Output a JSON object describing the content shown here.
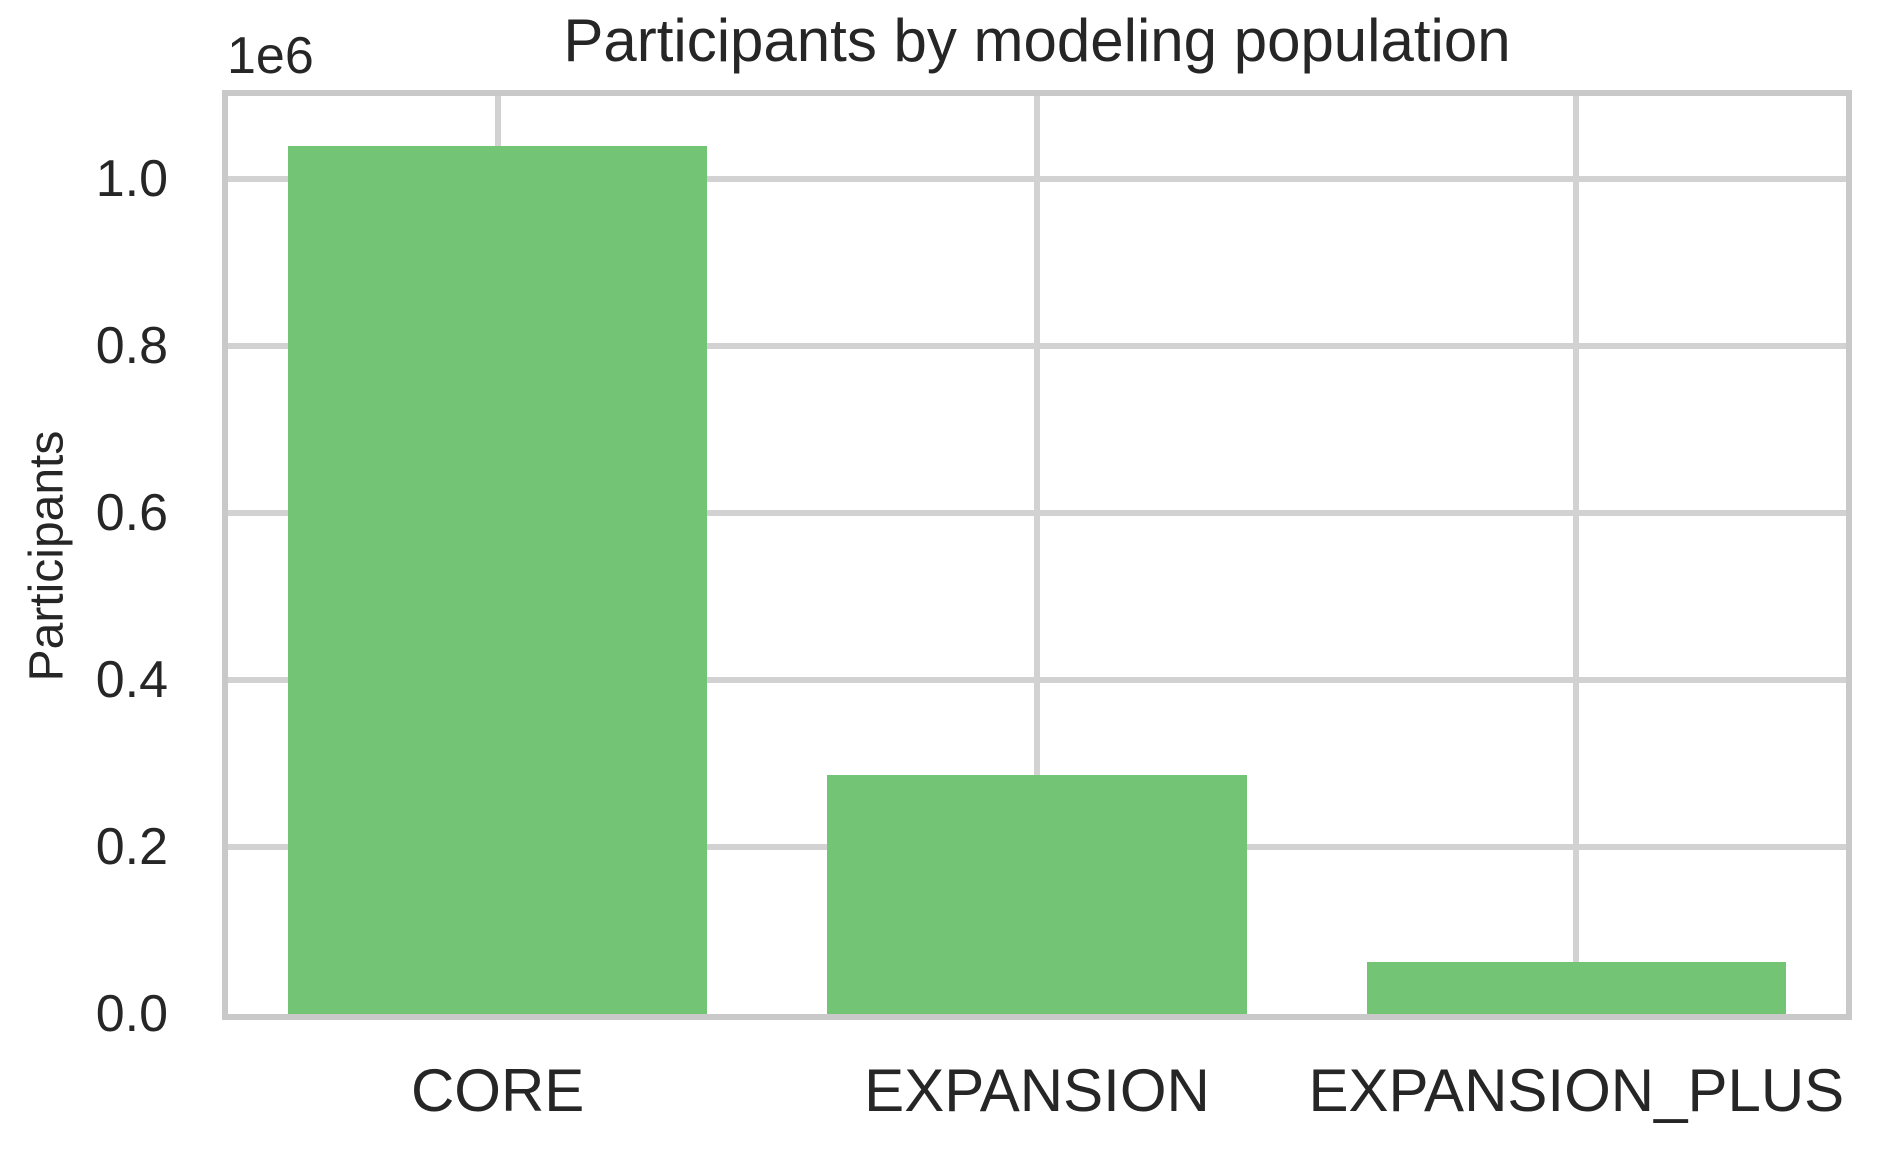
{
  "chart_data": {
    "type": "bar",
    "title": "Participants by modeling population",
    "ylabel": "Participants",
    "xlabel": "",
    "y_offset_label": "1e6",
    "categories": [
      "CORE",
      "EXPANSION",
      "EXPANSION_PLUS"
    ],
    "values": [
      1040000,
      287000,
      62000
    ],
    "yticks": [
      0,
      200000,
      400000,
      600000,
      800000,
      1000000
    ],
    "ytick_labels": [
      "0.0",
      "0.2",
      "0.4",
      "0.6",
      "0.8",
      "1.0"
    ],
    "ylim": [
      0,
      1100000
    ],
    "grid": true,
    "legend": null,
    "gridlines_vertical_at_category_centers": true,
    "colors": {
      "bar": "#74c476",
      "grid": "#d2d2d2",
      "spine": "#c9c9c9",
      "text": "#262626",
      "background": "#ffffff"
    }
  }
}
